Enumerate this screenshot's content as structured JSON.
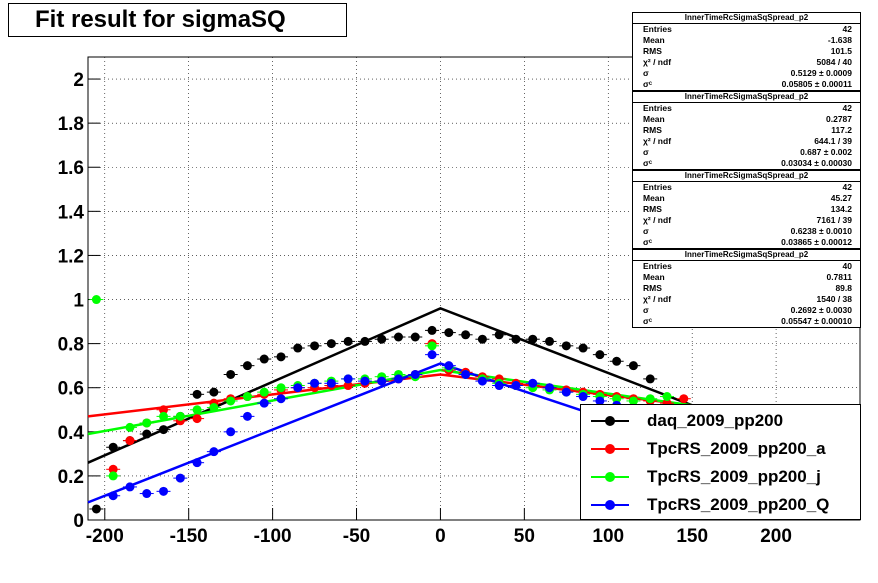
{
  "title": "Fit result for sigmaSQ",
  "stats_boxes": [
    {
      "name": "InnerTimeRcSigmaSqSpread_p2",
      "rows": [
        [
          "Entries",
          "42"
        ],
        [
          "Mean",
          "-1.638"
        ],
        [
          "RMS",
          "101.5"
        ],
        [
          "χ² / ndf",
          "5084 / 40"
        ],
        [
          "σ",
          "0.5129 ± 0.0009"
        ],
        [
          "σᶜ",
          "0.05805 ± 0.00011"
        ]
      ]
    },
    {
      "name": "InnerTimeRcSigmaSqSpread_p2",
      "rows": [
        [
          "Entries",
          "42"
        ],
        [
          "Mean",
          "0.2787"
        ],
        [
          "RMS",
          "117.2"
        ],
        [
          "χ² / ndf",
          "644.1 / 39"
        ],
        [
          "σ",
          "0.687 ± 0.002"
        ],
        [
          "σᶜ",
          "0.03034 ± 0.00030"
        ]
      ]
    },
    {
      "name": "InnerTimeRcSigmaSqSpread_p2",
      "rows": [
        [
          "Entries",
          "42"
        ],
        [
          "Mean",
          "45.27"
        ],
        [
          "RMS",
          "134.2"
        ],
        [
          "χ² / ndf",
          "7161 / 39"
        ],
        [
          "σ",
          "0.6238 ± 0.0010"
        ],
        [
          "σᶜ",
          "0.03865 ± 0.00012"
        ]
      ]
    },
    {
      "name": "InnerTimeRcSigmaSqSpread_p2",
      "rows": [
        [
          "Entries",
          "40"
        ],
        [
          "Mean",
          "0.7811"
        ],
        [
          "RMS",
          "89.8"
        ],
        [
          "χ² / ndf",
          "1540 / 38"
        ],
        [
          "σ",
          "0.2692 ± 0.0030"
        ],
        [
          "σᶜ",
          "0.05547 ± 0.00010"
        ]
      ]
    }
  ],
  "chart_data": {
    "type": "scatter",
    "title": "Fit result for sigmaSQ",
    "xlim": [
      -210,
      250
    ],
    "ylim": [
      0,
      2.1
    ],
    "grid": true,
    "legend_position": "bottom-right",
    "x_ticks": [
      -200,
      -150,
      -100,
      -50,
      0,
      50,
      100,
      150,
      200
    ],
    "x_tick_labels": [
      "-200",
      "-150",
      "-100",
      "-50",
      "0",
      "50",
      "100",
      "150",
      "200"
    ],
    "y_ticks": [
      0,
      0.2,
      0.4,
      0.6,
      0.8,
      1,
      1.2,
      1.4,
      1.6,
      1.8,
      2
    ],
    "y_tick_labels": [
      "0",
      "0.2",
      "0.4",
      "0.6",
      "0.8",
      "1",
      "1.2",
      "1.4",
      "1.6",
      "1.8",
      "2"
    ],
    "series": [
      {
        "name": "daq_2009_pp200",
        "color": "#000000",
        "x": [
          -205,
          -195,
          -185,
          -175,
          -165,
          -155,
          -145,
          -135,
          -125,
          -115,
          -105,
          -95,
          -85,
          -75,
          -65,
          -55,
          -45,
          -35,
          -25,
          -15,
          -5,
          5,
          15,
          25,
          35,
          45,
          55,
          65,
          75,
          85,
          95,
          105,
          115,
          125
        ],
        "y": [
          0.05,
          0.33,
          0.36,
          0.39,
          0.41,
          0.47,
          0.57,
          0.58,
          0.66,
          0.7,
          0.73,
          0.74,
          0.78,
          0.79,
          0.8,
          0.81,
          0.81,
          0.82,
          0.83,
          0.83,
          0.86,
          0.85,
          0.84,
          0.82,
          0.84,
          0.82,
          0.82,
          0.81,
          0.79,
          0.78,
          0.75,
          0.72,
          0.7,
          0.64
        ],
        "fit_x": [
          -210,
          0,
          150
        ],
        "fit_y": [
          0.26,
          0.96,
          0.52
        ]
      },
      {
        "name": "TpcRS_2009_pp200_a",
        "color": "#ff0000",
        "x": [
          -195,
          -185,
          -175,
          -165,
          -155,
          -145,
          -135,
          -125,
          -115,
          -105,
          -95,
          -85,
          -75,
          -65,
          -55,
          -45,
          -35,
          -25,
          -15,
          -5,
          5,
          15,
          25,
          35,
          45,
          55,
          65,
          75,
          85,
          95,
          105,
          115,
          125,
          135,
          145
        ],
        "y": [
          0.23,
          0.36,
          0.44,
          0.5,
          0.45,
          0.46,
          0.53,
          0.55,
          0.56,
          0.57,
          0.59,
          0.6,
          0.6,
          0.61,
          0.61,
          0.62,
          0.63,
          0.64,
          0.66,
          0.8,
          0.68,
          0.67,
          0.65,
          0.64,
          0.62,
          0.61,
          0.6,
          0.59,
          0.58,
          0.57,
          0.56,
          0.55,
          0.54,
          0.53,
          0.55
        ],
        "fit_x": [
          -210,
          0,
          150
        ],
        "fit_y": [
          0.47,
          0.66,
          0.52
        ]
      },
      {
        "name": "TpcRS_2009_pp200_j",
        "color": "#00ff00",
        "x": [
          -205,
          -195,
          -185,
          -175,
          -165,
          -155,
          -145,
          -135,
          -125,
          -115,
          -105,
          -95,
          -85,
          -75,
          -65,
          -55,
          -45,
          -35,
          -25,
          -15,
          -5,
          5,
          15,
          25,
          35,
          45,
          55,
          65,
          75,
          85,
          95,
          105,
          115,
          125,
          135
        ],
        "y": [
          1.0,
          0.2,
          0.42,
          0.44,
          0.47,
          0.47,
          0.5,
          0.51,
          0.54,
          0.56,
          0.58,
          0.6,
          0.61,
          0.62,
          0.63,
          0.64,
          0.64,
          0.65,
          0.66,
          0.65,
          0.79,
          0.69,
          0.66,
          0.64,
          0.62,
          0.61,
          0.6,
          0.59,
          0.58,
          0.57,
          0.56,
          0.55,
          0.54,
          0.55,
          0.56
        ],
        "fit_x": [
          -210,
          0,
          150
        ],
        "fit_y": [
          0.39,
          0.68,
          0.52
        ]
      },
      {
        "name": "TpcRS_2009_pp200_Q",
        "color": "#0000ff",
        "x": [
          -195,
          -185,
          -175,
          -165,
          -155,
          -145,
          -135,
          -125,
          -115,
          -105,
          -95,
          -85,
          -75,
          -65,
          -55,
          -45,
          -35,
          -25,
          -15,
          -5,
          5,
          15,
          25,
          35,
          45,
          55,
          65,
          75,
          85,
          95,
          105,
          115,
          125
        ],
        "y": [
          0.11,
          0.15,
          0.12,
          0.13,
          0.19,
          0.26,
          0.31,
          0.4,
          0.47,
          0.53,
          0.55,
          0.6,
          0.62,
          0.62,
          0.64,
          0.63,
          0.63,
          0.64,
          0.66,
          0.75,
          0.7,
          0.66,
          0.63,
          0.61,
          0.61,
          0.62,
          0.6,
          0.58,
          0.56,
          0.54,
          0.52,
          0.5,
          0.48
        ],
        "fit_x": [
          -210,
          0,
          150
        ],
        "fit_y": [
          0.08,
          0.71,
          0.33
        ]
      }
    ]
  }
}
